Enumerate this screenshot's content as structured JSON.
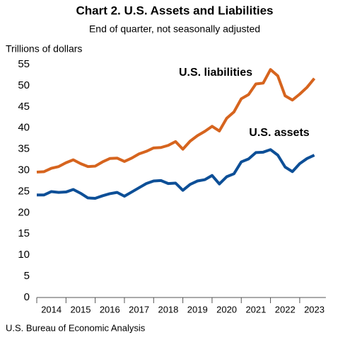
{
  "chart_data": {
    "type": "line",
    "title": "Chart 2. U.S. Assets and Liabilities",
    "subtitle": "End of quarter, not seasonally adjusted",
    "y_label": "Trillions of dollars",
    "source": "U.S. Bureau of Economic Analysis",
    "categories": [
      null,
      null,
      "2014",
      null,
      null,
      null,
      "2015",
      null,
      null,
      null,
      "2016",
      null,
      null,
      null,
      "2017",
      null,
      null,
      null,
      "2018",
      null,
      null,
      null,
      "2019",
      null,
      null,
      null,
      "2020",
      null,
      null,
      null,
      "2021",
      null,
      null,
      null,
      "2022",
      null,
      null,
      null,
      "2023"
    ],
    "series": [
      {
        "name": "U.S. liabilities",
        "color": "#d6641e",
        "values": [
          29.6,
          29.7,
          30.5,
          30.9,
          31.8,
          32.5,
          31.6,
          30.9,
          31.0,
          32.0,
          32.8,
          32.9,
          32.1,
          32.9,
          33.9,
          34.5,
          35.3,
          35.4,
          35.9,
          36.8,
          35.0,
          36.9,
          38.2,
          39.2,
          40.4,
          39.3,
          42.3,
          43.8,
          46.9,
          47.9,
          50.4,
          50.6,
          53.8,
          52.3,
          47.6,
          46.6,
          48.0,
          49.6,
          51.7
        ]
      },
      {
        "name": "U.S. assets",
        "color": "#0d4f97",
        "values": [
          24.2,
          24.2,
          25.0,
          24.8,
          24.9,
          25.5,
          24.6,
          23.5,
          23.4,
          24.0,
          24.5,
          24.8,
          23.9,
          24.9,
          25.9,
          26.9,
          27.5,
          27.6,
          26.9,
          27.0,
          25.3,
          26.7,
          27.5,
          27.8,
          28.8,
          26.8,
          28.5,
          29.2,
          32.0,
          32.7,
          34.2,
          34.3,
          34.9,
          33.6,
          30.8,
          29.7,
          31.6,
          32.8,
          33.6
        ]
      }
    ],
    "ylim": [
      0,
      55
    ],
    "yticks": [
      0,
      5,
      10,
      15,
      20,
      25,
      30,
      35,
      40,
      45,
      50,
      55
    ],
    "grid": false
  }
}
